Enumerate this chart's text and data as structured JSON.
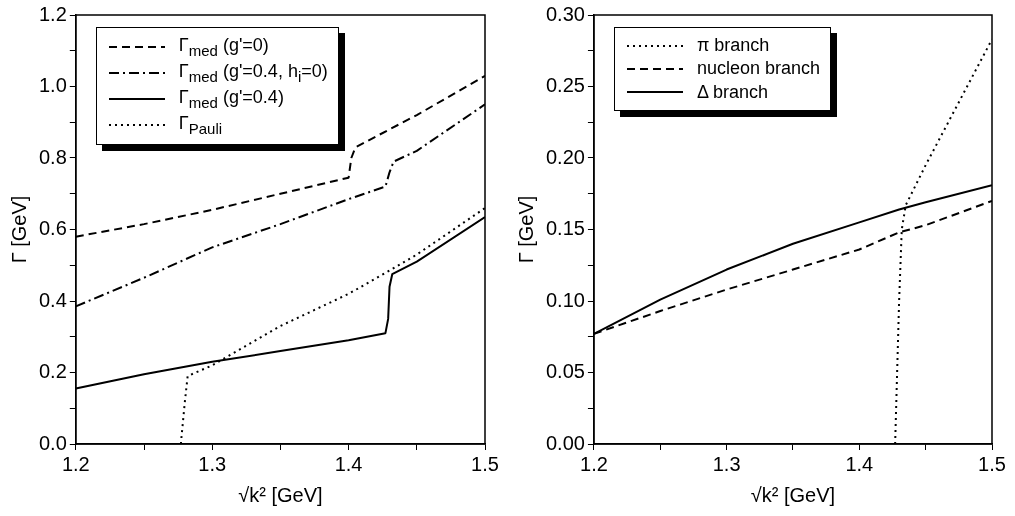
{
  "chart_data": [
    {
      "type": "line",
      "xlabel": "√k² [GeV]",
      "ylabel": "Γ [GeV]",
      "xlim": [
        1.2,
        1.5
      ],
      "ylim": [
        0,
        1.2
      ],
      "xticks": [
        1.2,
        {
          "value": 1.25,
          "label": null
        },
        1.3,
        {
          "value": 1.35,
          "label": null
        },
        1.4,
        {
          "value": 1.45,
          "label": null
        },
        1.5
      ],
      "yticks": [
        {
          "value": 0,
          "label": "0.0"
        },
        {
          "value": 0.1,
          "label": null
        },
        {
          "value": 0.2,
          "label": "0.2"
        },
        {
          "value": 0.3,
          "label": null
        },
        {
          "value": 0.4,
          "label": "0.4"
        },
        {
          "value": 0.5,
          "label": null
        },
        {
          "value": 0.6,
          "label": "0.6"
        },
        {
          "value": 0.7,
          "label": null
        },
        {
          "value": 0.8,
          "label": "0.8"
        },
        {
          "value": 0.9,
          "label": null
        },
        {
          "value": 1.0,
          "label": "1.0"
        },
        {
          "value": 1.1,
          "label": null
        },
        {
          "value": 1.2,
          "label": "1.2"
        }
      ],
      "grid": false,
      "legend": "top left",
      "marker": "none",
      "series": [
        {
          "name": "Γ$_{med}$ (g'=0)",
          "color": "#000000",
          "line_style": "dashed",
          "x": [
            1.2,
            1.25,
            1.3,
            1.35,
            1.4,
            1.402,
            1.405,
            1.42,
            1.45,
            1.5
          ],
          "values": [
            0.58,
            0.615,
            0.655,
            0.7,
            0.745,
            0.8,
            0.83,
            0.86,
            0.92,
            1.03
          ]
        },
        {
          "name": "Γ$_{med}$ (g'=0.4, h$_{i}$=0)",
          "color": "#000000",
          "line_style": "dashdot",
          "x": [
            1.2,
            1.25,
            1.3,
            1.35,
            1.4,
            1.427,
            1.43,
            1.433,
            1.45,
            1.5
          ],
          "values": [
            0.385,
            0.465,
            0.55,
            0.615,
            0.685,
            0.72,
            0.76,
            0.79,
            0.82,
            0.95
          ]
        },
        {
          "name": "Γ$_{med}$ (g'=0.4)",
          "color": "#000000",
          "line_style": "solid",
          "x": [
            1.2,
            1.25,
            1.3,
            1.35,
            1.4,
            1.427,
            1.429,
            1.43,
            1.432,
            1.45,
            1.5
          ],
          "values": [
            0.155,
            0.195,
            0.23,
            0.26,
            0.29,
            0.31,
            0.35,
            0.44,
            0.475,
            0.51,
            0.635
          ]
        },
        {
          "name": "Γ$_{Pauli}$",
          "color": "#000000",
          "line_style": "dotted",
          "x": [
            1.277,
            1.28,
            1.282,
            1.3,
            1.35,
            1.4,
            1.43,
            1.45,
            1.5
          ],
          "values": [
            0,
            0.12,
            0.19,
            0.22,
            0.33,
            0.42,
            0.485,
            0.53,
            0.66
          ]
        }
      ]
    },
    {
      "type": "line",
      "xlabel": "√k² [GeV]",
      "ylabel": "Γ [GeV]",
      "xlim": [
        1.2,
        1.5
      ],
      "ylim": [
        0,
        0.3
      ],
      "xticks": [
        1.2,
        {
          "value": 1.25,
          "label": null
        },
        1.3,
        {
          "value": 1.35,
          "label": null
        },
        1.4,
        {
          "value": 1.45,
          "label": null
        },
        1.5
      ],
      "yticks": [
        {
          "value": 0,
          "label": "0.00"
        },
        {
          "value": 0.025,
          "label": null
        },
        {
          "value": 0.05,
          "label": "0.05"
        },
        {
          "value": 0.075,
          "label": null
        },
        {
          "value": 0.1,
          "label": "0.10"
        },
        {
          "value": 0.125,
          "label": null
        },
        {
          "value": 0.15,
          "label": "0.15"
        },
        {
          "value": 0.175,
          "label": null
        },
        {
          "value": 0.2,
          "label": "0.20"
        },
        {
          "value": 0.225,
          "label": null
        },
        {
          "value": 0.25,
          "label": "0.25"
        },
        {
          "value": 0.275,
          "label": null
        },
        {
          "value": 0.3,
          "label": "0.30"
        }
      ],
      "grid": false,
      "legend": "top left",
      "marker": "none",
      "series": [
        {
          "name": "π branch",
          "color": "#000000",
          "line_style": "dotted",
          "x": [
            1.427,
            1.43,
            1.432,
            1.435,
            1.45,
            1.5
          ],
          "values": [
            0,
            0.1,
            0.15,
            0.167,
            0.195,
            0.283
          ]
        },
        {
          "name": "nucleon branch",
          "color": "#000000",
          "line_style": "dashed",
          "x": [
            1.2,
            1.25,
            1.3,
            1.35,
            1.4,
            1.43,
            1.45,
            1.5
          ],
          "values": [
            0.077,
            0.093,
            0.108,
            0.122,
            0.136,
            0.148,
            0.153,
            0.17
          ]
        },
        {
          "name": "Δ branch",
          "color": "#000000",
          "line_style": "solid",
          "x": [
            1.2,
            1.25,
            1.3,
            1.35,
            1.4,
            1.43,
            1.45,
            1.5
          ],
          "values": [
            0.077,
            0.101,
            0.122,
            0.14,
            0.155,
            0.164,
            0.169,
            0.181
          ]
        }
      ]
    }
  ]
}
